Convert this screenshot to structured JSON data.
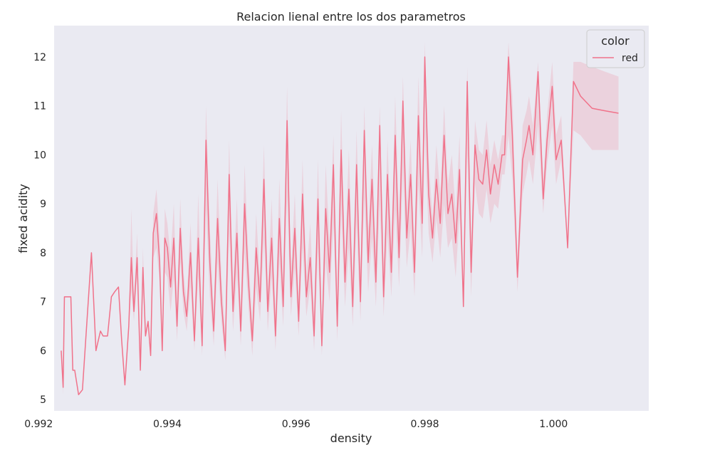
{
  "chart_data": {
    "type": "line",
    "title": "Relacion lienal entre los dos parametros",
    "xlabel": "density",
    "ylabel": "fixed acidity",
    "xlim": [
      0.99224,
      1.00148
    ],
    "ylim": [
      4.77,
      12.64
    ],
    "xticks": [
      "0.992",
      "0.994",
      "0.996",
      "0.998",
      "1.000"
    ],
    "xtick_values": [
      0.992,
      0.994,
      0.996,
      0.998,
      1.0
    ],
    "yticks": [
      "5",
      "6",
      "7",
      "8",
      "9",
      "10",
      "11",
      "12"
    ],
    "ytick_values": [
      5,
      6,
      7,
      8,
      9,
      10,
      11,
      12
    ],
    "grid": false,
    "legend": {
      "title": "color",
      "placement": "top-right"
    },
    "series": [
      {
        "name": "red",
        "color": "#f0728a",
        "x": [
          0.99235,
          0.99238,
          0.9924,
          0.99245,
          0.9925,
          0.99253,
          0.99256,
          0.99262,
          0.99268,
          0.99275,
          0.99282,
          0.99289,
          0.99296,
          0.993,
          0.99307,
          0.99313,
          0.99318,
          0.99324,
          0.99329,
          0.99334,
          0.9934,
          0.99344,
          0.99348,
          0.99353,
          0.99358,
          0.99362,
          0.99366,
          0.9937,
          0.99374,
          0.99378,
          0.99383,
          0.99388,
          0.99392,
          0.99396,
          0.994,
          0.99405,
          0.9941,
          0.99415,
          0.9942,
          0.99425,
          0.9943,
          0.99436,
          0.99442,
          0.99448,
          0.99454,
          0.9946,
          0.99466,
          0.99472,
          0.99478,
          0.99484,
          0.9949,
          0.99496,
          0.99502,
          0.99508,
          0.99514,
          0.9952,
          0.99526,
          0.99532,
          0.99538,
          0.99544,
          0.9955,
          0.99556,
          0.99562,
          0.99568,
          0.99574,
          0.9958,
          0.99586,
          0.99592,
          0.99598,
          0.99604,
          0.9961,
          0.99616,
          0.99622,
          0.99628,
          0.99634,
          0.9964,
          0.99646,
          0.99652,
          0.99658,
          0.99664,
          0.9967,
          0.99676,
          0.99682,
          0.99688,
          0.99694,
          0.997,
          0.99706,
          0.99712,
          0.99718,
          0.99724,
          0.9973,
          0.99736,
          0.99742,
          0.99748,
          0.99754,
          0.9976,
          0.99766,
          0.99772,
          0.99778,
          0.99784,
          0.9979,
          0.99796,
          0.998,
          0.99806,
          0.99812,
          0.99818,
          0.99824,
          0.9983,
          0.99836,
          0.99842,
          0.99848,
          0.99854,
          0.9986,
          0.99866,
          0.99872,
          0.99878,
          0.99884,
          0.9989,
          0.99896,
          0.99902,
          0.99908,
          0.99914,
          0.9992,
          0.99924,
          0.9993,
          0.99936,
          0.99944,
          0.99952,
          0.99958,
          0.99962,
          0.99968,
          0.99976,
          0.99984,
          0.9999,
          0.99998,
          1.00004,
          1.00012,
          1.00022,
          1.00031,
          1.00042,
          1.0006,
          1.0008,
          1.00101
        ],
        "y": [
          6.0,
          5.25,
          7.1,
          7.1,
          7.1,
          5.6,
          5.6,
          5.1,
          5.2,
          6.6,
          8.0,
          6.0,
          6.4,
          6.3,
          6.3,
          7.1,
          7.2,
          7.3,
          6.2,
          5.3,
          6.5,
          7.9,
          6.8,
          7.9,
          5.6,
          7.7,
          6.3,
          6.6,
          5.9,
          8.4,
          8.8,
          7.8,
          6.0,
          8.3,
          8.1,
          7.3,
          8.3,
          6.5,
          8.5,
          7.2,
          6.7,
          8.0,
          6.2,
          8.3,
          6.1,
          10.3,
          7.8,
          6.4,
          8.7,
          7.0,
          6.0,
          9.6,
          6.8,
          8.4,
          6.4,
          9.0,
          7.4,
          6.2,
          8.1,
          7.0,
          9.5,
          6.8,
          8.3,
          6.3,
          8.7,
          6.9,
          10.7,
          7.1,
          8.5,
          6.6,
          9.2,
          7.1,
          7.9,
          6.3,
          9.1,
          6.1,
          8.9,
          7.6,
          9.8,
          6.5,
          10.1,
          7.4,
          9.3,
          6.9,
          9.8,
          7.0,
          10.5,
          7.8,
          9.5,
          7.4,
          10.6,
          7.1,
          9.6,
          7.6,
          10.4,
          7.9,
          11.1,
          8.3,
          9.6,
          7.6,
          10.8,
          8.6,
          12.0,
          9.2,
          8.3,
          9.5,
          8.6,
          10.4,
          8.8,
          9.2,
          8.2,
          9.7,
          6.9,
          11.5,
          7.6,
          10.2,
          9.5,
          9.4,
          10.1,
          9.2,
          9.8,
          9.4,
          10.0,
          10.0,
          12.0,
          10.4,
          7.5,
          9.9,
          10.3,
          10.6,
          10.0,
          11.7,
          9.1,
          10.3,
          11.4,
          9.9,
          10.3,
          8.1,
          11.5,
          11.2,
          10.95,
          10.9,
          10.85
        ],
        "ci_lower": [
          6.0,
          5.1,
          7.1,
          7.1,
          7.1,
          5.6,
          5.6,
          5.1,
          5.2,
          6.6,
          8.0,
          6.0,
          6.4,
          6.3,
          6.3,
          7.1,
          7.2,
          7.3,
          6.2,
          5.3,
          6.5,
          7.2,
          6.6,
          7.5,
          5.6,
          7.3,
          6.3,
          6.6,
          5.9,
          7.9,
          8.1,
          7.4,
          6.0,
          7.6,
          7.5,
          6.8,
          7.5,
          6.2,
          7.8,
          6.8,
          6.4,
          7.3,
          6.0,
          7.5,
          5.9,
          8.9,
          7.1,
          6.1,
          7.8,
          6.6,
          5.8,
          8.4,
          6.4,
          7.6,
          6.1,
          8.0,
          6.9,
          5.9,
          7.3,
          6.6,
          8.3,
          6.4,
          7.5,
          6.0,
          7.8,
          6.5,
          9.1,
          6.7,
          7.7,
          6.3,
          8.1,
          6.7,
          7.3,
          6.0,
          8.0,
          5.9,
          7.8,
          7.0,
          8.6,
          6.2,
          8.8,
          6.9,
          8.1,
          6.5,
          8.6,
          6.6,
          9.1,
          7.2,
          8.3,
          6.9,
          9.0,
          6.7,
          8.4,
          7.1,
          8.9,
          7.3,
          9.6,
          7.7,
          8.5,
          7.1,
          9.4,
          7.9,
          10.4,
          8.4,
          7.8,
          8.7,
          7.9,
          9.0,
          8.1,
          8.3,
          7.5,
          8.8,
          6.9,
          10.0,
          7.1,
          9.4,
          8.8,
          8.7,
          9.3,
          8.6,
          9.0,
          8.9,
          9.6,
          9.6,
          10.4,
          9.5,
          7.2,
          9.2,
          9.6,
          9.9,
          9.4,
          10.6,
          8.8,
          9.8,
          10.6,
          9.4,
          9.9,
          8.1,
          10.5,
          10.4,
          10.1,
          10.1,
          10.1
        ],
        "ci_upper": [
          6.0,
          5.4,
          7.1,
          7.1,
          7.1,
          5.6,
          5.6,
          5.1,
          5.2,
          6.6,
          8.0,
          6.0,
          6.4,
          6.3,
          6.3,
          7.1,
          7.2,
          7.3,
          6.2,
          5.3,
          6.5,
          8.9,
          7.1,
          8.4,
          5.6,
          8.1,
          6.3,
          6.6,
          5.9,
          8.8,
          9.3,
          8.3,
          6.0,
          8.9,
          8.6,
          7.9,
          9.0,
          6.8,
          9.1,
          7.6,
          7.0,
          8.6,
          6.5,
          9.2,
          6.4,
          11.0,
          8.5,
          6.8,
          9.5,
          7.5,
          6.3,
          10.3,
          7.3,
          9.1,
          6.7,
          9.8,
          7.9,
          6.6,
          8.8,
          7.4,
          10.2,
          7.2,
          9.1,
          6.7,
          9.5,
          7.4,
          11.4,
          7.6,
          9.2,
          7.0,
          9.9,
          7.5,
          8.6,
          6.7,
          9.9,
          6.4,
          9.8,
          8.2,
          10.4,
          6.9,
          10.9,
          7.9,
          10.1,
          7.4,
          10.5,
          7.5,
          11.0,
          8.4,
          10.2,
          8.0,
          11.0,
          7.5,
          10.3,
          8.1,
          11.2,
          8.6,
          11.6,
          8.9,
          10.3,
          8.0,
          11.6,
          9.3,
          12.3,
          9.9,
          8.7,
          10.2,
          9.2,
          11.0,
          9.4,
          10.0,
          8.8,
          10.4,
          7.0,
          11.8,
          8.1,
          10.7,
          10.1,
          10.0,
          10.7,
          9.8,
          10.3,
          9.9,
          10.4,
          10.4,
          12.3,
          11.2,
          7.8,
          10.6,
          10.9,
          11.2,
          10.6,
          11.9,
          9.5,
          10.8,
          11.9,
          10.4,
          10.8,
          8.1,
          11.9,
          11.9,
          11.8,
          11.7,
          11.6
        ]
      }
    ]
  }
}
